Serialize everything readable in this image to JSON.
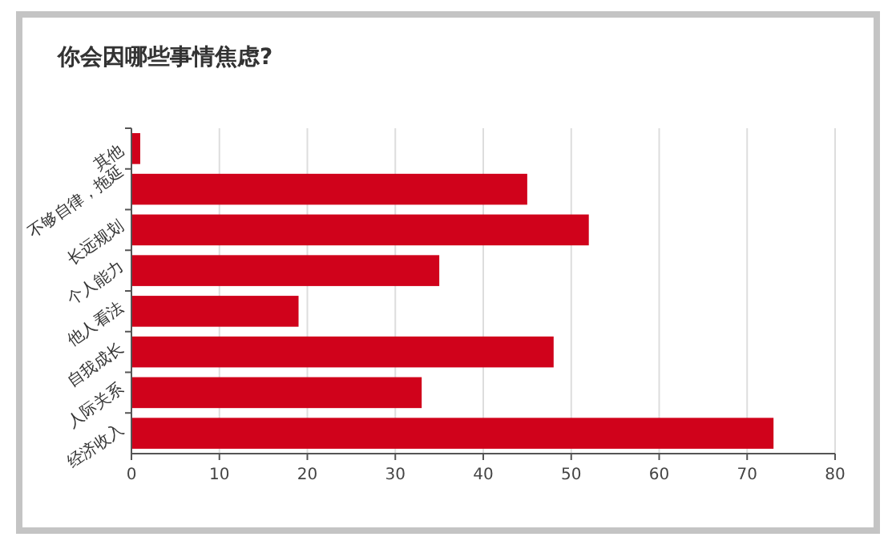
{
  "chart_data": {
    "type": "bar",
    "orientation": "horizontal",
    "title": "你会因哪些事情焦虑?",
    "categories": [
      "其他",
      "不够自律，拖延",
      "长远规划",
      "个人能力",
      "他人看法",
      "自我成长",
      "人际关系",
      "经济收入"
    ],
    "values": [
      1,
      45,
      52,
      35,
      19,
      48,
      33,
      73
    ],
    "color": "#d0021b",
    "xlim": [
      0,
      80
    ],
    "xticks": [
      0,
      10,
      20,
      30,
      40,
      50,
      60,
      70,
      80
    ],
    "grid": "x"
  }
}
